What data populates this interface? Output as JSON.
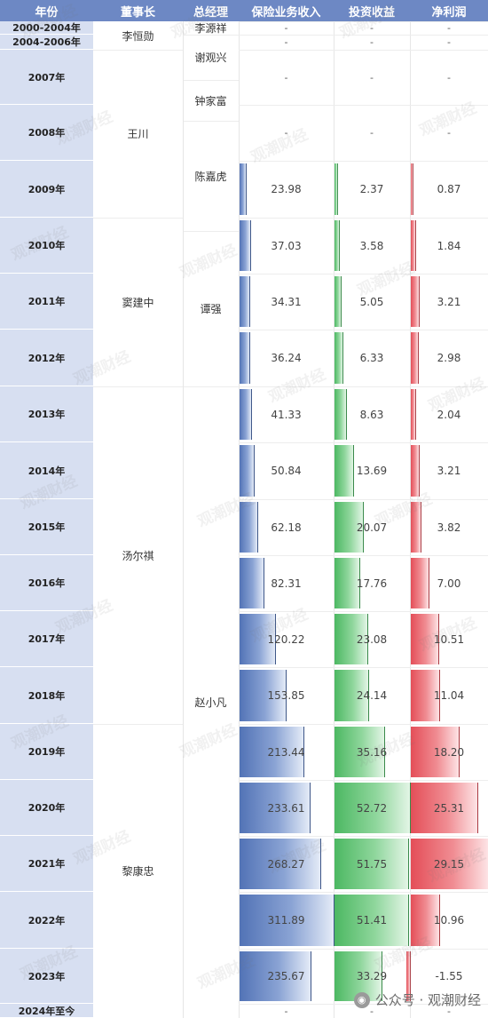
{
  "headers": {
    "year": "年份",
    "chairman": "董事长",
    "gm": "总经理",
    "premium": "保险业务收入",
    "invest": "投资收益",
    "profit": "净利润"
  },
  "rows": [
    {
      "year": "2000-2004年",
      "premium": "-",
      "invest": "-",
      "profit": "-"
    },
    {
      "year": "2004-2006年",
      "premium": "-",
      "invest": "-",
      "profit": "-"
    },
    {
      "year": "2007年",
      "premium": "-",
      "invest": "-",
      "profit": "-"
    },
    {
      "year": "2008年",
      "premium": "-",
      "invest": "-",
      "profit": "-"
    },
    {
      "year": "2009年",
      "premium": "23.98",
      "invest": "2.37",
      "profit": "0.87"
    },
    {
      "year": "2010年",
      "premium": "37.03",
      "invest": "3.58",
      "profit": "1.84"
    },
    {
      "year": "2011年",
      "premium": "34.31",
      "invest": "5.05",
      "profit": "3.21"
    },
    {
      "year": "2012年",
      "premium": "36.24",
      "invest": "6.33",
      "profit": "2.98"
    },
    {
      "year": "2013年",
      "premium": "41.33",
      "invest": "8.63",
      "profit": "2.04"
    },
    {
      "year": "2014年",
      "premium": "50.84",
      "invest": "13.69",
      "profit": "3.21"
    },
    {
      "year": "2015年",
      "premium": "62.18",
      "invest": "20.07",
      "profit": "3.82"
    },
    {
      "year": "2016年",
      "premium": "82.31",
      "invest": "17.76",
      "profit": "7.00"
    },
    {
      "year": "2017年",
      "premium": "120.22",
      "invest": "23.08",
      "profit": "10.51"
    },
    {
      "year": "2018年",
      "premium": "153.85",
      "invest": "24.14",
      "profit": "11.04"
    },
    {
      "year": "2019年",
      "premium": "213.44",
      "invest": "35.16",
      "profit": "18.20"
    },
    {
      "year": "2020年",
      "premium": "233.61",
      "invest": "52.72",
      "profit": "25.31"
    },
    {
      "year": "2021年",
      "premium": "268.27",
      "invest": "51.75",
      "profit": "29.15"
    },
    {
      "year": "2022年",
      "premium": "311.89",
      "invest": "51.41",
      "profit": "10.96"
    },
    {
      "year": "2023年",
      "premium": "235.67",
      "invest": "33.29",
      "profit": "-1.55"
    },
    {
      "year": "2024年至今",
      "premium": "-",
      "invest": "-",
      "profit": "-"
    }
  ],
  "chairmen": [
    "李恒勋",
    "王川",
    "窦建中",
    "汤尔祺",
    "黎康忠"
  ],
  "general_managers": [
    "李源祥",
    "谢观兴",
    "钟家富",
    "陈嘉虎",
    "谭强",
    "赵小凡"
  ],
  "watermark": "观潮财经",
  "brand": {
    "icon": "wechat-icon",
    "text": "公众号 · 观潮财经"
  },
  "colors": {
    "header": "#6d88c4",
    "year_bg": "#d7dff1",
    "premium": "#5273b6",
    "invest": "#4cb862",
    "profit": "#e44e58"
  }
}
